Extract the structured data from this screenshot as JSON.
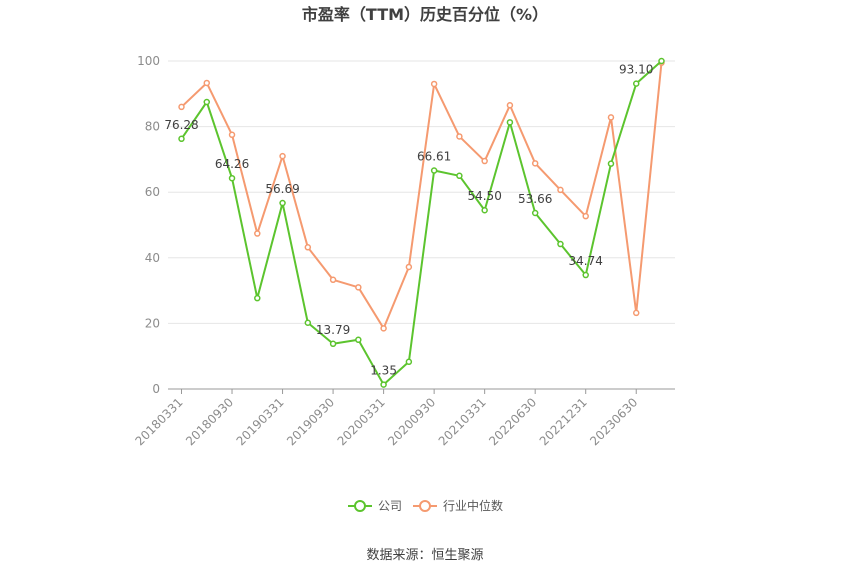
{
  "title": "市盈率（TTM）历史百分位（%）",
  "source": "数据来源：恒生聚源",
  "chart_data": {
    "type": "line",
    "title": "市盈率（TTM）历史百分位（%）",
    "ylim": [
      0,
      100
    ],
    "yticks": [
      "0",
      "20",
      "40",
      "60",
      "80",
      "100"
    ],
    "grid": true,
    "legend_position": "bottom",
    "x": [
      "20180331",
      "20180630",
      "20180930",
      "20181231",
      "20190331",
      "20190630",
      "20190930",
      "20191231",
      "20200331",
      "20200630",
      "20200930",
      "20201231",
      "20210331",
      "20210630",
      "20220630",
      "20220930",
      "20221231",
      "20230331",
      "20230630",
      "20230930"
    ],
    "xtick_labels": [
      "20180331",
      "20180930",
      "20190331",
      "20190930",
      "20200331",
      "20200930",
      "20210331",
      "20220630",
      "20221231",
      "20230630"
    ],
    "series": [
      {
        "name": "公司",
        "color": "#5cc42e",
        "values": [
          76.28,
          87.5,
          64.26,
          27.7,
          56.69,
          20.2,
          13.79,
          15.0,
          1.35,
          8.3,
          66.61,
          65.0,
          54.5,
          81.3,
          53.66,
          44.2,
          34.74,
          68.7,
          93.1,
          100.0
        ],
        "labels": [
          "76.28",
          "",
          "64.26",
          "",
          "56.69",
          "",
          "13.79",
          "",
          "1.35",
          "",
          "66.61",
          "",
          "54.50",
          "",
          "53.66",
          "",
          "34.74",
          "",
          "93.10",
          ""
        ]
      },
      {
        "name": "行业中位数",
        "color": "#f59a70",
        "values": [
          86.0,
          93.3,
          77.5,
          47.4,
          71.0,
          43.2,
          33.3,
          31.0,
          18.5,
          37.2,
          93.0,
          77.0,
          69.5,
          86.5,
          68.8,
          60.7,
          52.7,
          82.8,
          23.2,
          99.5
        ]
      }
    ]
  }
}
